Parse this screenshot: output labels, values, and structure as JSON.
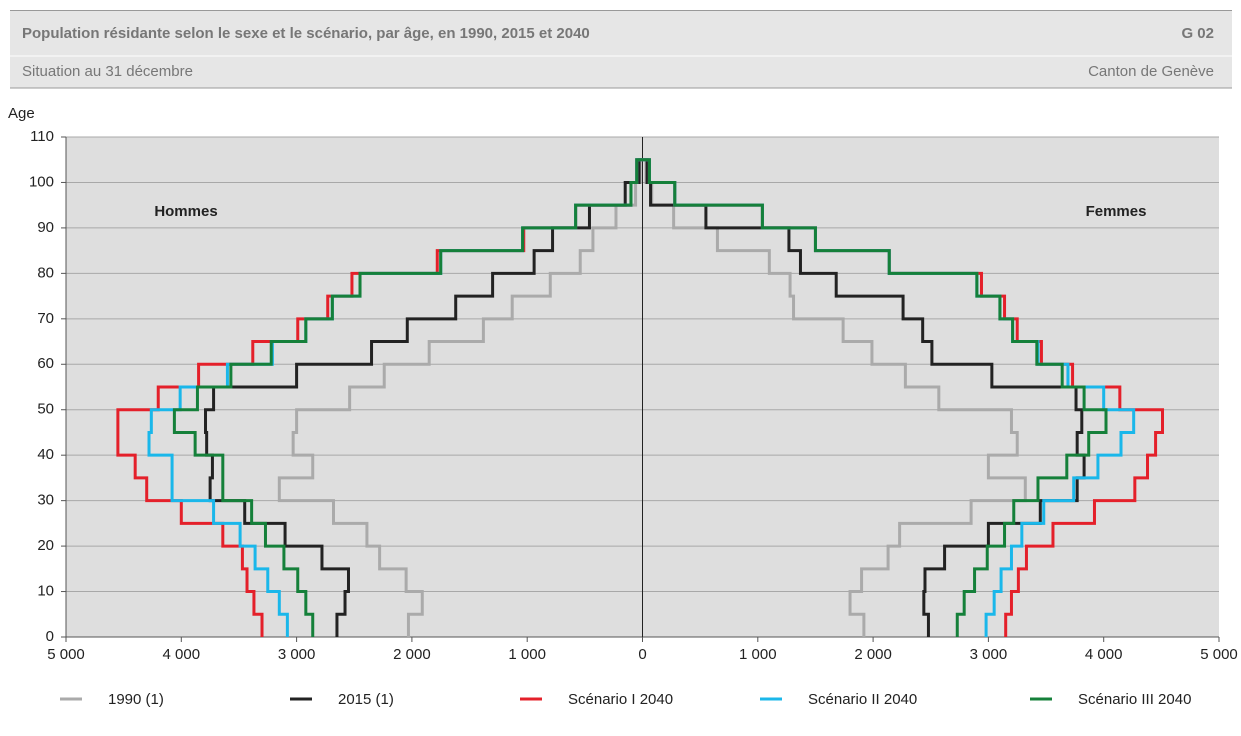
{
  "chart_data": {
    "type": "pyramid",
    "title": "Population résidante selon le sexe et le scénario, par âge, en 1990, 2015 et 2040",
    "code": "G 02",
    "subtitle": "Situation au 31 décembre",
    "region": "Canton de Genève",
    "y_label": "Age",
    "male_label": "Hommes",
    "female_label": "Femmes",
    "bins": [
      0,
      5,
      10,
      15,
      20,
      25,
      30,
      35,
      40,
      45,
      50,
      55,
      60,
      65,
      70,
      75,
      80,
      85,
      90,
      95,
      100,
      105
    ],
    "ylim": [
      0,
      110
    ],
    "yticks": [
      0,
      10,
      20,
      30,
      40,
      50,
      60,
      70,
      80,
      90,
      100,
      110
    ],
    "xlim": [
      0,
      5000
    ],
    "xticks_male": [
      {
        "value": 5000,
        "label": "5 000"
      },
      {
        "value": 4000,
        "label": "4 000"
      },
      {
        "value": 3000,
        "label": "3 000"
      },
      {
        "value": 2000,
        "label": "2 000"
      },
      {
        "value": 1000,
        "label": "1 000"
      },
      0
    ],
    "xticks_female": [
      {
        "value": 1000,
        "label": "1 000"
      },
      {
        "value": 2000,
        "label": "2 000"
      },
      {
        "value": 3000,
        "label": "3 000"
      },
      {
        "value": 4000,
        "label": "4 000"
      },
      {
        "value": 5000,
        "label": "5 000"
      }
    ],
    "grid": true,
    "series": [
      {
        "name": "1990 (1)",
        "color": "#aaaaaa",
        "male": [
          2030,
          1910,
          2050,
          2280,
          2390,
          2680,
          3150,
          2860,
          3030,
          3000,
          2540,
          2240,
          1850,
          1380,
          1130,
          800,
          540,
          430,
          230,
          60,
          20
        ],
        "female": [
          1920,
          1800,
          1900,
          2130,
          2230,
          2850,
          3320,
          3000,
          3250,
          3200,
          2570,
          2280,
          1990,
          1740,
          1310,
          1280,
          1100,
          650,
          270,
          80,
          30
        ]
      },
      {
        "name": "2015 (1)",
        "color": "#222222",
        "male": [
          2650,
          2580,
          2550,
          2780,
          3100,
          3450,
          3750,
          3730,
          3780,
          3790,
          3720,
          3000,
          2350,
          2040,
          1620,
          1300,
          940,
          780,
          460,
          150,
          30
        ],
        "female": [
          2480,
          2440,
          2450,
          2620,
          3000,
          3450,
          3770,
          3830,
          3770,
          3810,
          3760,
          3030,
          2510,
          2430,
          2260,
          1680,
          1370,
          1270,
          550,
          70,
          40
        ]
      },
      {
        "name": "Scénario I 2040",
        "color": "#e4202a",
        "male": [
          3300,
          3370,
          3430,
          3470,
          3640,
          4000,
          4300,
          4400,
          4550,
          4550,
          4200,
          3850,
          3380,
          2990,
          2730,
          2520,
          1780,
          1030,
          580,
          100,
          50
        ],
        "female": [
          3150,
          3200,
          3260,
          3330,
          3560,
          3920,
          4270,
          4380,
          4450,
          4510,
          4140,
          3730,
          3460,
          3250,
          3140,
          2940,
          2140,
          1500,
          1040,
          280,
          60
        ]
      },
      {
        "name": "Scénario II 2040",
        "color": "#1ab7ea",
        "male": [
          3080,
          3150,
          3250,
          3360,
          3490,
          3720,
          4080,
          4080,
          4280,
          4260,
          4010,
          3600,
          3210,
          2920,
          2690,
          2450,
          1750,
          1040,
          580,
          100,
          50
        ],
        "female": [
          2980,
          3050,
          3110,
          3200,
          3290,
          3480,
          3740,
          3950,
          4150,
          4260,
          4000,
          3690,
          3430,
          3210,
          3100,
          2900,
          2140,
          1500,
          1040,
          280,
          60
        ]
      },
      {
        "name": "Scénario III 2040",
        "color": "#15803a",
        "male": [
          2860,
          2920,
          2990,
          3110,
          3270,
          3390,
          3640,
          3640,
          3880,
          4060,
          3860,
          3570,
          3220,
          2920,
          2690,
          2450,
          1750,
          1040,
          580,
          100,
          50
        ],
        "female": [
          2730,
          2790,
          2880,
          2990,
          3140,
          3220,
          3430,
          3680,
          3870,
          4020,
          3830,
          3640,
          3420,
          3210,
          3100,
          2900,
          2140,
          1500,
          1040,
          280,
          60
        ]
      }
    ]
  }
}
